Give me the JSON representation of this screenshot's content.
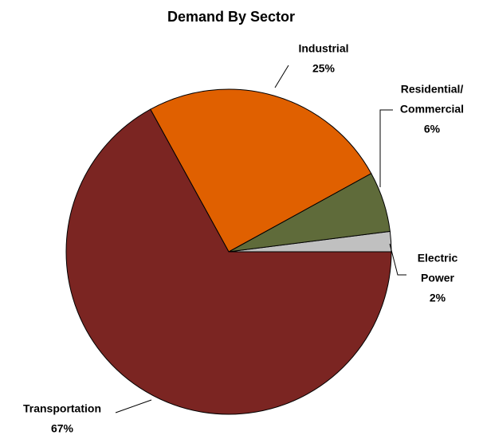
{
  "chart_data": {
    "type": "pie",
    "title": "Demand By Sector",
    "categories": [
      [
        "Electric",
        "Power"
      ],
      [
        "Residential/",
        "Commercial"
      ],
      [
        "Industrial"
      ],
      [
        "Transportation"
      ]
    ],
    "values": [
      2,
      6,
      25,
      67
    ],
    "value_labels": [
      "2%",
      "6%",
      "25%",
      "67%"
    ],
    "colors": [
      "#c0c0c0",
      "#5f6b3a",
      "#e06000",
      "#7b2522"
    ]
  }
}
